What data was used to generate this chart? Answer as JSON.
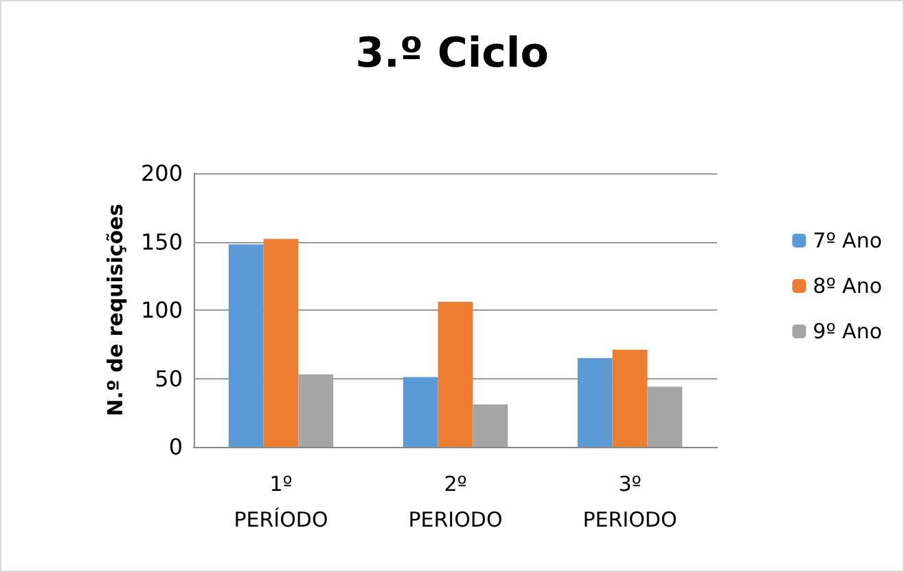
{
  "chart_data": {
    "type": "bar",
    "title": "3.º Ciclo",
    "ylabel": "N.º de requisições",
    "categories": [
      "1º\nPERÍODO",
      "2º\nPERIODO",
      "3º\nPERIODO"
    ],
    "series": [
      {
        "name": "7º Ano",
        "color": "#5b9bd5",
        "values": [
          148,
          51,
          65
        ]
      },
      {
        "name": "8º Ano",
        "color": "#ed7d31",
        "values": [
          152,
          106,
          71
        ]
      },
      {
        "name": "9º Ano",
        "color": "#a5a5a5",
        "values": [
          53,
          31,
          44
        ]
      }
    ],
    "ylim": [
      0,
      200
    ],
    "yticks": [
      0,
      50,
      100,
      150,
      200
    ],
    "grid": "y",
    "legend": "right"
  }
}
